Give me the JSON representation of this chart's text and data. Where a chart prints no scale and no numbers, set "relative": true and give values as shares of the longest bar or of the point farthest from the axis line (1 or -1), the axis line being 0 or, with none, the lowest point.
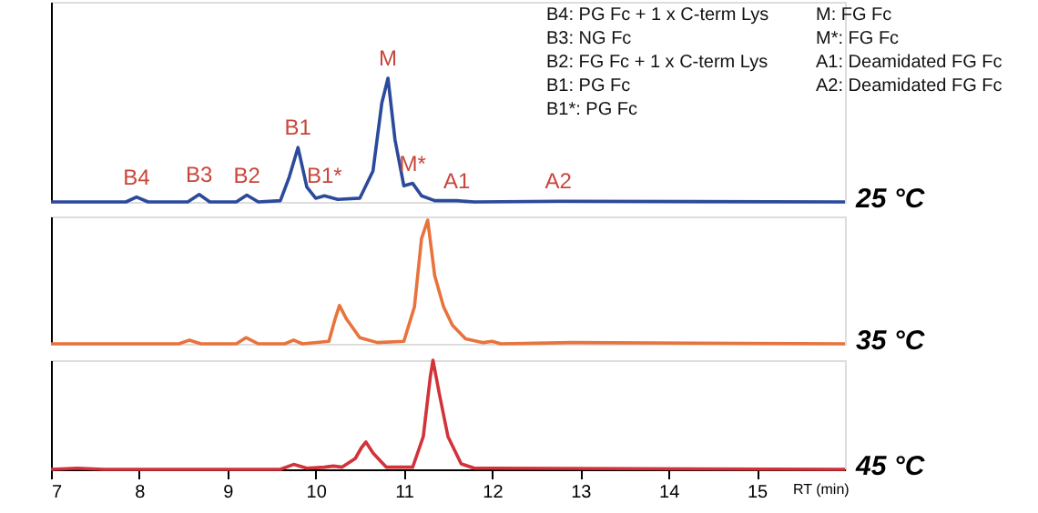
{
  "chart_data": [
    {
      "type": "line",
      "relative": true,
      "xlim": [
        7,
        16
      ],
      "tick_labels": false,
      "series": [
        {
          "name": "25 °C",
          "color": "#2b4a9c",
          "x": [
            7,
            7.85,
            7.97,
            8.1,
            8.55,
            8.68,
            8.8,
            9.1,
            9.22,
            9.35,
            9.6,
            9.7,
            9.8,
            9.9,
            10.0,
            10.1,
            10.25,
            10.5,
            10.65,
            10.75,
            10.82,
            10.9,
            11.0,
            11.1,
            11.2,
            11.35,
            11.6,
            11.8,
            12.75,
            16
          ],
          "values": [
            0,
            0,
            0.04,
            0,
            0,
            0.06,
            0,
            0,
            0.055,
            0,
            0.01,
            0.2,
            0.44,
            0.12,
            0.03,
            0.05,
            0.02,
            0.03,
            0.25,
            0.8,
            1,
            0.5,
            0.13,
            0.15,
            0.05,
            0.01,
            0.01,
            0,
            0.005,
            0
          ]
        }
      ],
      "annotations": [
        {
          "text": "B4",
          "x": 7.97,
          "y": 0.04
        },
        {
          "text": "B3",
          "x": 8.68,
          "y": 0.06
        },
        {
          "text": "B2",
          "x": 9.22,
          "y": 0.055
        },
        {
          "text": "B1",
          "x": 9.8,
          "y": 0.44
        },
        {
          "text": "B1*",
          "x": 10.1,
          "y": 0.05
        },
        {
          "text": "M",
          "x": 10.82,
          "y": 1
        },
        {
          "text": "M*",
          "x": 11.1,
          "y": 0.15
        },
        {
          "text": "A1",
          "x": 11.6,
          "y": 0.01
        },
        {
          "text": "A2",
          "x": 12.75,
          "y": 0.005
        },
        "B4: PG Fc + 1 x C-term Lys",
        "B3: NG Fc",
        "B2: FG Fc + 1 x C-term Lys",
        "B1: PG Fc",
        "B1*: PG Fc",
        "M: FG Fc",
        "M*: FG Fc",
        "A1: Deamidated FG Fc",
        "A2: Deamidated FG Fc"
      ]
    },
    {
      "type": "line",
      "relative": true,
      "xlim": [
        7,
        16
      ],
      "tick_labels": false,
      "series": [
        {
          "name": "35 °C",
          "color": "#e8733c",
          "x": [
            7,
            8.45,
            8.57,
            8.7,
            9.1,
            9.21,
            9.35,
            9.65,
            9.75,
            9.85,
            10.15,
            10.22,
            10.27,
            10.35,
            10.5,
            10.7,
            11.0,
            11.12,
            11.2,
            11.27,
            11.35,
            11.45,
            11.55,
            11.7,
            11.9,
            12.0,
            12.1,
            12.9,
            16
          ],
          "values": [
            0,
            0,
            0.03,
            0,
            0,
            0.05,
            0,
            0,
            0.03,
            0,
            0.02,
            0.2,
            0.31,
            0.2,
            0.05,
            0.01,
            0.02,
            0.3,
            0.85,
            1,
            0.55,
            0.3,
            0.15,
            0.04,
            0.01,
            0.02,
            0,
            0.01,
            0
          ]
        }
      ]
    },
    {
      "type": "line",
      "relative": true,
      "xlabel": "RT (min)",
      "xlim": [
        7,
        16
      ],
      "xticks": [
        7,
        8,
        9,
        10,
        11,
        12,
        13,
        14,
        15
      ],
      "tick_labels": "x",
      "series": [
        {
          "name": "45 °C",
          "color": "#d2323a",
          "x": [
            7,
            7.3,
            7.6,
            9.6,
            9.75,
            9.9,
            10.1,
            10.2,
            10.3,
            10.45,
            10.52,
            10.57,
            10.65,
            10.8,
            11.1,
            11.22,
            11.3,
            11.33,
            11.4,
            11.5,
            11.65,
            11.8,
            12.0,
            16
          ],
          "values": [
            0,
            0.01,
            0,
            0,
            0.045,
            0.01,
            0.02,
            0.03,
            0.02,
            0.1,
            0.2,
            0.25,
            0.15,
            0.02,
            0.02,
            0.3,
            0.85,
            1,
            0.7,
            0.3,
            0.05,
            0.01,
            0.01,
            0
          ]
        }
      ]
    }
  ]
}
